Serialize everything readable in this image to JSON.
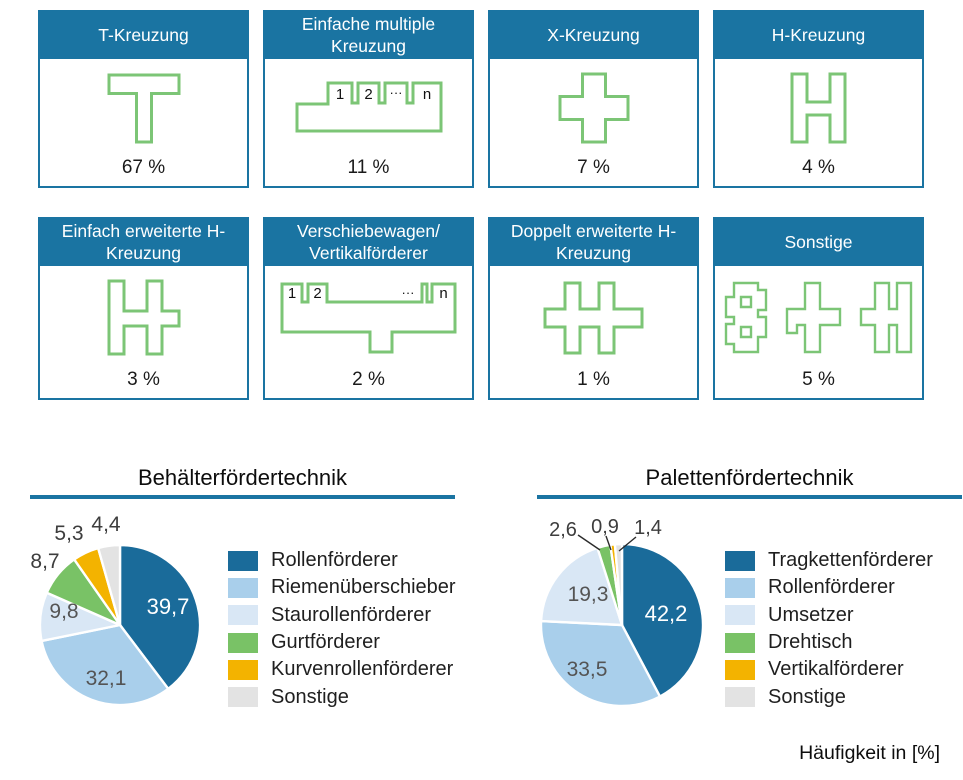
{
  "colors": {
    "header_blue": "#1a74a2",
    "icon_green": "#7cc576"
  },
  "cards": [
    {
      "title": "T-Kreuzung",
      "percent": "67 %"
    },
    {
      "title": "Einfache multiple Kreuzung",
      "percent": "11 %",
      "icon_labels": [
        "1",
        "2",
        "···",
        "n"
      ]
    },
    {
      "title": "X-Kreuzung",
      "percent": "7 %"
    },
    {
      "title": "H-Kreuzung",
      "percent": "4 %"
    },
    {
      "title": "Einfach erweiterte H-Kreuzung",
      "percent": "3 %"
    },
    {
      "title": "Verschiebewagen/ Vertikalförderer",
      "percent": "2 %",
      "icon_labels": [
        "1",
        "2",
        "···",
        "n"
      ]
    },
    {
      "title": "Doppelt erweiterte H-Kreuzung",
      "percent": "1 %"
    },
    {
      "title": "Sonstige",
      "percent": "5 %"
    }
  ],
  "chart_data": [
    {
      "type": "pie",
      "title": "Behälterfördertechnik",
      "unit": "Häufigkeit in [%]",
      "legend_position": "right",
      "r": 80,
      "slices": [
        {
          "label": "Rollenförderer",
          "value": 39.7,
          "display": "39,7",
          "color": "#1a6b9a",
          "label_at": [
            148,
            104
          ],
          "label_color": "#ffffff",
          "label_size": 22
        },
        {
          "label": "Riemenüberschieber",
          "value": 32.1,
          "display": "32,1",
          "color": "#a9cfeb",
          "label_at": [
            86,
            175
          ],
          "label_color": "#545454",
          "label_size": 21
        },
        {
          "label": "Staurollenförderer",
          "value": 9.8,
          "display": "9,8",
          "color": "#d9e7f5",
          "label_at": [
            44,
            108
          ],
          "label_color": "#545454",
          "label_size": 21
        },
        {
          "label": "Gurtförderer",
          "value": 8.7,
          "display": "8,7",
          "color": "#79c266",
          "label_at": [
            25,
            58
          ],
          "label_color": "#3d3d3d",
          "label_size": 21
        },
        {
          "label": "Kurvenrollenförderer",
          "value": 5.3,
          "display": "5,3",
          "color": "#f3b300",
          "label_at": [
            49,
            30
          ],
          "label_color": "#3d3d3d",
          "label_size": 21
        },
        {
          "label": "Sonstige",
          "value": 4.4,
          "display": "4,4",
          "color": "#e3e3e3",
          "label_at": [
            86,
            21
          ],
          "label_color": "#3d3d3d",
          "label_size": 21
        }
      ]
    },
    {
      "type": "pie",
      "title": "Palettenfördertechnik",
      "unit": "Häufigkeit in [%]",
      "legend_position": "right",
      "r": 81,
      "slices": [
        {
          "label": "Tragkettenförderer",
          "value": 42.2,
          "display": "42,2",
          "color": "#1a6b9a",
          "label_at": [
            144,
            111
          ],
          "label_color": "#ffffff",
          "label_size": 22
        },
        {
          "label": "Rollenförderer",
          "value": 33.5,
          "display": "33,5",
          "color": "#a9cfeb",
          "label_at": [
            65,
            166
          ],
          "label_color": "#545454",
          "label_size": 21
        },
        {
          "label": "Umsetzer",
          "value": 19.3,
          "display": "19,3",
          "color": "#d9e7f5",
          "label_at": [
            66,
            91
          ],
          "label_color": "#545454",
          "label_size": 21
        },
        {
          "label": "Drehtisch",
          "value": 2.6,
          "display": "2,6",
          "color": "#79c266",
          "label_at": [
            41,
            26
          ],
          "label_color": "#3d3d3d",
          "label_size": 20,
          "leader": [
            [
              56,
              25
            ],
            [
              78,
              40
            ]
          ]
        },
        {
          "label": "Vertikalförderer",
          "value": 0.9,
          "display": "0,9",
          "color": "#f3b300",
          "label_at": [
            83,
            23
          ],
          "label_color": "#3d3d3d",
          "label_size": 20,
          "leader": [
            [
              84,
              26
            ],
            [
              89,
              40
            ]
          ]
        },
        {
          "label": "Sonstige",
          "value": 1.4,
          "display": "1,4",
          "color": "#e3e3e3",
          "label_at": [
            126,
            24
          ],
          "label_color": "#3d3d3d",
          "label_size": 20,
          "leader": [
            [
              114,
              27
            ],
            [
              97,
              41
            ]
          ]
        }
      ]
    }
  ],
  "footnote": "Häufigkeit in [%]"
}
